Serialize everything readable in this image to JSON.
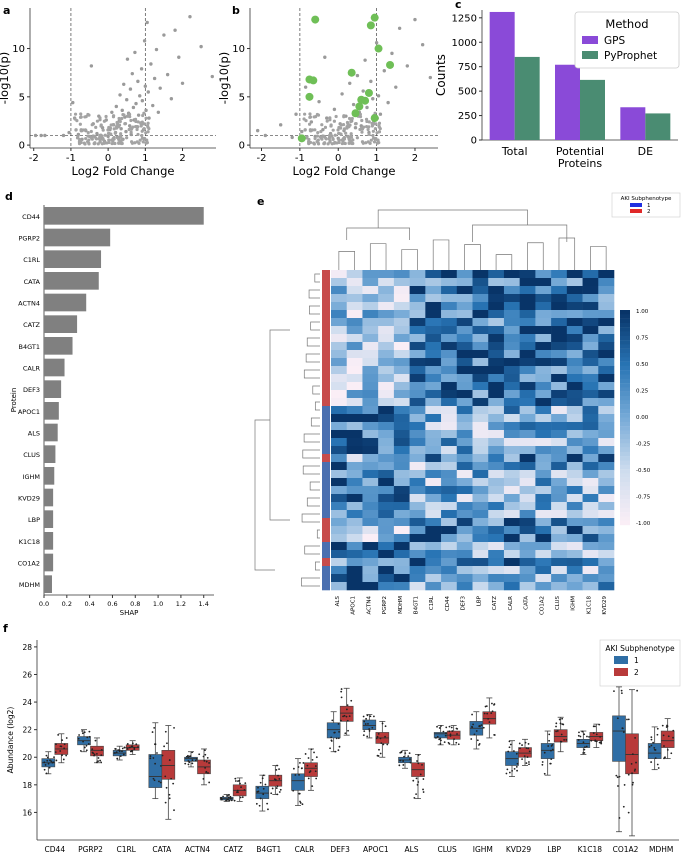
{
  "panel_labels": {
    "a": "a",
    "b": "b",
    "c": "c",
    "d": "d",
    "e": "e",
    "f": "f"
  },
  "chart_data": [
    {
      "id": "a",
      "type": "scatter",
      "title": "",
      "xlabel": "Log2 Fold Change",
      "ylabel": "-log10(p)",
      "xlim": [
        -2.1,
        2.9
      ],
      "ylim": [
        -0.3,
        14.2
      ],
      "xticks": [
        -2,
        -1,
        0,
        1,
        2
      ],
      "yticks": [
        0,
        5,
        10
      ],
      "vlines": [
        -1,
        1
      ],
      "hline": 1.0,
      "points": [
        [
          -1.95,
          1.0
        ],
        [
          -1.8,
          1.0
        ],
        [
          -1.7,
          1.0
        ],
        [
          -1.2,
          1.0
        ],
        [
          -1.05,
          1.3
        ],
        [
          -0.95,
          4.4
        ],
        [
          -0.9,
          2.8
        ],
        [
          -0.8,
          1.1
        ],
        [
          -0.7,
          0.6
        ],
        [
          -0.6,
          1.5
        ],
        [
          -0.5,
          0.9
        ],
        [
          -0.45,
          8.2
        ],
        [
          -0.4,
          2.2
        ],
        [
          -0.3,
          1.2
        ],
        [
          -0.25,
          3.0
        ],
        [
          -0.2,
          0.7
        ],
        [
          -0.15,
          1.8
        ],
        [
          -0.1,
          0.4
        ],
        [
          -0.05,
          2.6
        ],
        [
          0.0,
          0.9
        ],
        [
          0.05,
          1.6
        ],
        [
          0.1,
          3.4
        ],
        [
          0.12,
          0.5
        ],
        [
          0.15,
          2.1
        ],
        [
          0.2,
          1.3
        ],
        [
          0.22,
          4.0
        ],
        [
          0.25,
          0.8
        ],
        [
          0.3,
          2.5
        ],
        [
          0.32,
          5.2
        ],
        [
          0.35,
          1.7
        ],
        [
          0.38,
          3.6
        ],
        [
          0.4,
          0.6
        ],
        [
          0.42,
          6.3
        ],
        [
          0.45,
          2.9
        ],
        [
          0.48,
          1.4
        ],
        [
          0.5,
          4.7
        ],
        [
          0.52,
          8.9
        ],
        [
          0.55,
          3.3
        ],
        [
          0.58,
          2.0
        ],
        [
          0.6,
          5.8
        ],
        [
          0.62,
          1.1
        ],
        [
          0.65,
          7.4
        ],
        [
          0.68,
          3.9
        ],
        [
          0.7,
          2.6
        ],
        [
          0.72,
          9.6
        ],
        [
          0.75,
          4.3
        ],
        [
          0.78,
          1.9
        ],
        [
          0.8,
          6.6
        ],
        [
          0.82,
          3.1
        ],
        [
          0.85,
          5.1
        ],
        [
          0.88,
          2.3
        ],
        [
          0.9,
          7.9
        ],
        [
          0.92,
          4.6
        ],
        [
          0.95,
          1.6
        ],
        [
          0.98,
          10.8
        ],
        [
          1.0,
          6.1
        ],
        [
          1.02,
          3.6
        ],
        [
          1.05,
          12.7
        ],
        [
          1.08,
          5.5
        ],
        [
          1.1,
          2.8
        ],
        [
          1.15,
          8.4
        ],
        [
          1.2,
          4.1
        ],
        [
          1.25,
          6.9
        ],
        [
          1.3,
          9.9
        ],
        [
          1.35,
          3.4
        ],
        [
          1.4,
          5.9
        ],
        [
          1.5,
          11.4
        ],
        [
          1.6,
          7.3
        ],
        [
          1.7,
          4.8
        ],
        [
          1.8,
          11.9
        ],
        [
          1.9,
          9.1
        ],
        [
          2.0,
          6.4
        ],
        [
          2.2,
          13.3
        ],
        [
          2.5,
          10.2
        ],
        [
          2.8,
          7.1
        ]
      ]
    },
    {
      "id": "b",
      "type": "scatter",
      "title": "",
      "xlabel": "Log2 Fold Change",
      "ylabel": "-log10(p)",
      "xlim": [
        -2.3,
        2.6
      ],
      "ylim": [
        -0.3,
        14.2
      ],
      "xticks": [
        -2,
        -1,
        0,
        1,
        2
      ],
      "yticks": [
        0,
        5,
        10
      ],
      "vlines": [
        -1,
        1
      ],
      "hline": 1.0,
      "points": [
        [
          -2.1,
          1.5
        ],
        [
          -1.9,
          1.0
        ],
        [
          -1.5,
          2.1
        ],
        [
          -1.2,
          0.8
        ],
        [
          -1.1,
          3.2
        ],
        [
          -0.95,
          1.4
        ],
        [
          -0.85,
          6.0
        ],
        [
          -0.7,
          2.4
        ],
        [
          -0.6,
          0.9
        ],
        [
          -0.5,
          4.5
        ],
        [
          -0.4,
          1.6
        ],
        [
          -0.35,
          9.1
        ],
        [
          -0.3,
          2.8
        ],
        [
          -0.2,
          1.2
        ],
        [
          -0.1,
          3.7
        ],
        [
          0.0,
          0.7
        ],
        [
          0.05,
          2.2
        ],
        [
          0.1,
          5.3
        ],
        [
          0.15,
          1.5
        ],
        [
          0.2,
          3.0
        ],
        [
          0.25,
          0.9
        ],
        [
          0.3,
          6.4
        ],
        [
          0.35,
          2.5
        ],
        [
          0.4,
          4.2
        ],
        [
          0.45,
          1.8
        ],
        [
          0.5,
          7.2
        ],
        [
          0.55,
          3.4
        ],
        [
          0.6,
          2.0
        ],
        [
          0.65,
          5.6
        ],
        [
          0.7,
          8.8
        ],
        [
          0.75,
          3.9
        ],
        [
          0.8,
          1.3
        ],
        [
          0.85,
          6.6
        ],
        [
          0.9,
          4.8
        ],
        [
          0.95,
          2.7
        ],
        [
          1.0,
          10.6
        ],
        [
          1.05,
          5.1
        ],
        [
          1.1,
          3.2
        ],
        [
          1.2,
          7.7
        ],
        [
          1.3,
          4.4
        ],
        [
          1.4,
          9.5
        ],
        [
          1.5,
          6.0
        ],
        [
          1.6,
          12.1
        ],
        [
          1.8,
          8.2
        ],
        [
          2.0,
          13.0
        ],
        [
          2.2,
          10.4
        ],
        [
          2.4,
          7.0
        ]
      ],
      "highlighted": [
        [
          -0.95,
          0.7
        ],
        [
          -0.75,
          6.8
        ],
        [
          -0.75,
          5.0
        ],
        [
          -0.65,
          6.7
        ],
        [
          -0.6,
          13.0
        ],
        [
          0.35,
          7.5
        ],
        [
          0.45,
          3.3
        ],
        [
          0.55,
          4.0
        ],
        [
          0.6,
          4.7
        ],
        [
          0.7,
          4.6
        ],
        [
          0.8,
          5.4
        ],
        [
          0.85,
          12.4
        ],
        [
          0.95,
          2.8
        ],
        [
          0.95,
          13.2
        ],
        [
          1.05,
          10.0
        ],
        [
          1.35,
          8.3
        ]
      ]
    },
    {
      "id": "c",
      "type": "bar",
      "title": "",
      "xlabel": "",
      "ylabel": "Counts",
      "categories": [
        "Total",
        "Potential\nProteins",
        "DE"
      ],
      "series": [
        {
          "name": "GPS",
          "values": [
            1310,
            770,
            335
          ],
          "color": "#8a4ad8"
        },
        {
          "name": "PyProphet",
          "values": [
            850,
            615,
            272
          ],
          "color": "#4a8c72"
        }
      ],
      "ylim": [
        0,
        1330
      ],
      "yticks": [
        0,
        250,
        500,
        750,
        1000,
        1250
      ],
      "legend_title": "Method",
      "legend_position": "top-right"
    },
    {
      "id": "d",
      "type": "bar",
      "orientation": "horizontal",
      "title": "",
      "xlabel": "SHAP",
      "ylabel": "Protein",
      "categories": [
        "CD44",
        "PGRP2",
        "C1RL",
        "CATA",
        "ACTN4",
        "CATZ",
        "B4GT1",
        "CALR",
        "DEF3",
        "APOC1",
        "ALS",
        "CLUS",
        "IGHM",
        "KVD29",
        "LBP",
        "K1C18",
        "CO1A2",
        "MDHM"
      ],
      "values": [
        1.4,
        0.58,
        0.5,
        0.48,
        0.37,
        0.29,
        0.25,
        0.18,
        0.15,
        0.13,
        0.12,
        0.1,
        0.09,
        0.08,
        0.08,
        0.08,
        0.08,
        0.07
      ],
      "xlim": [
        0,
        1.49
      ],
      "xticks": [
        0.0,
        0.2,
        0.4,
        0.6,
        0.8,
        1.0,
        1.2,
        1.4
      ],
      "bar_color": "#808080"
    },
    {
      "id": "e",
      "type": "heatmap",
      "title": "",
      "columns": [
        "ALS",
        "APOC1",
        "ACTN4",
        "PGRP2",
        "MDHM",
        "B4GT1",
        "C1RL",
        "CD44",
        "DEF3",
        "LBP",
        "CATZ",
        "CALR",
        "CATA",
        "CO1A2",
        "CLUS",
        "IGHM",
        "K1C18",
        "KVD29"
      ],
      "colorbar_ticks": [
        "1.00",
        "0.75",
        "0.50",
        "0.25",
        "0.00",
        "-0.25",
        "-0.50",
        "-0.75",
        "-1.00"
      ],
      "colorbar_range": [
        -1,
        1
      ],
      "legend_title": "AKI Subphenotype",
      "legend_entries": [
        {
          "label": "1",
          "color": "#1f2fe0"
        },
        {
          "label": "2",
          "color": "#e02828"
        }
      ],
      "row_groups": [
        "2",
        "2",
        "2",
        "2",
        "2",
        "2",
        "2",
        "2",
        "2",
        "2",
        "2",
        "2",
        "2",
        "2",
        "2",
        "2",
        "2",
        "1",
        "1",
        "1",
        "1",
        "1",
        "1",
        "2",
        "1",
        "1",
        "1",
        "1",
        "1",
        "1",
        "1",
        "2",
        "2",
        "2",
        "1",
        "1",
        "2",
        "1",
        "1",
        "1"
      ],
      "rows": 40
    },
    {
      "id": "f",
      "type": "box",
      "title": "",
      "xlabel": "",
      "ylabel": "Abundance (log2)",
      "categories": [
        "CD44",
        "PGRP2",
        "C1RL",
        "CATA",
        "ACTN4",
        "CATZ",
        "B4GT1",
        "CALR",
        "DEF3",
        "APOC1",
        "ALS",
        "CLUS",
        "IGHM",
        "KVD29",
        "LBP",
        "K1C18",
        "CO1A2",
        "MDHM"
      ],
      "series": [
        {
          "name": "1",
          "color": "#2f6ea5",
          "stats": [
            [
              18.8,
              19.3,
              19.6,
              19.9,
              20.4
            ],
            [
              20.4,
              20.9,
              21.2,
              21.5,
              22.0
            ],
            [
              19.8,
              20.1,
              20.3,
              20.5,
              20.8
            ],
            [
              17.0,
              17.8,
              18.6,
              20.2,
              22.5
            ],
            [
              19.3,
              19.7,
              19.9,
              20.0,
              20.4
            ],
            [
              16.8,
              16.9,
              17.0,
              17.1,
              17.3
            ],
            [
              16.1,
              17.0,
              17.4,
              17.9,
              18.7
            ],
            [
              16.5,
              17.6,
              18.3,
              18.8,
              19.9
            ],
            [
              20.4,
              21.4,
              22.0,
              22.5,
              23.3
            ],
            [
              21.4,
              22.0,
              22.3,
              22.7,
              23.1
            ],
            [
              19.2,
              19.6,
              19.8,
              20.0,
              20.5
            ],
            [
              20.9,
              21.4,
              21.7,
              21.8,
              22.3
            ],
            [
              20.6,
              21.6,
              22.1,
              22.6,
              23.3
            ],
            [
              18.6,
              19.4,
              19.9,
              20.4,
              21.2
            ],
            [
              18.7,
              19.9,
              20.5,
              21.0,
              21.9
            ],
            [
              20.2,
              20.7,
              21.0,
              21.3,
              21.9
            ],
            [
              14.6,
              19.7,
              21.9,
              23.0,
              25.1
            ],
            [
              19.1,
              19.9,
              20.3,
              21.0,
              22.2
            ]
          ]
        },
        {
          "name": "2",
          "color": "#b83a3a",
          "stats": [
            [
              19.6,
              20.2,
              20.6,
              21.0,
              21.7
            ],
            [
              19.6,
              20.1,
              20.5,
              20.8,
              21.4
            ],
            [
              20.2,
              20.5,
              20.7,
              20.9,
              21.2
            ],
            [
              15.5,
              18.4,
              19.4,
              20.5,
              22.3
            ],
            [
              18.0,
              18.8,
              19.3,
              19.8,
              20.6
            ],
            [
              16.8,
              17.2,
              17.6,
              18.0,
              18.5
            ],
            [
              17.3,
              17.9,
              18.3,
              18.7,
              19.4
            ],
            [
              17.6,
              18.6,
              19.2,
              19.6,
              20.6
            ],
            [
              21.6,
              22.6,
              23.2,
              23.7,
              25.0
            ],
            [
              20.0,
              21.0,
              21.4,
              21.8,
              22.6
            ],
            [
              17.0,
              18.6,
              19.1,
              19.6,
              20.2
            ],
            [
              20.9,
              21.3,
              21.6,
              21.9,
              22.3
            ],
            [
              21.4,
              22.4,
              22.8,
              23.3,
              24.3
            ],
            [
              19.4,
              20.0,
              20.3,
              20.7,
              21.3
            ],
            [
              20.4,
              21.1,
              21.5,
              22.0,
              22.9
            ],
            [
              20.7,
              21.2,
              21.5,
              21.8,
              22.4
            ],
            [
              14.3,
              18.8,
              20.2,
              21.7,
              24.9
            ],
            [
              19.9,
              20.7,
              21.2,
              21.9,
              22.8
            ]
          ]
        }
      ],
      "ylim": [
        14.0,
        28.5
      ],
      "yticks": [
        16,
        18,
        20,
        22,
        24,
        26,
        28
      ],
      "legend_title": "AKI Subphenotype",
      "legend_position": "top-right"
    }
  ]
}
